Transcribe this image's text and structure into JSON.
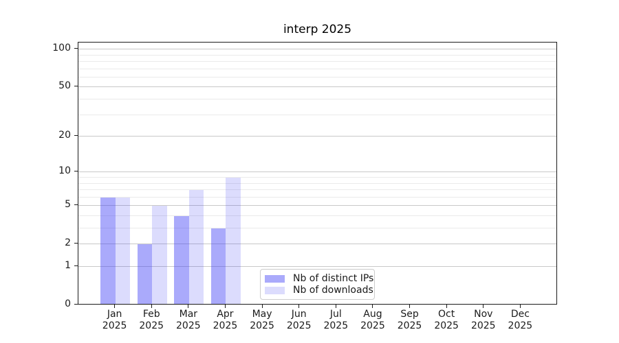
{
  "chart_data": {
    "type": "bar",
    "title": "interp 2025",
    "categories": [
      "Jan",
      "Feb",
      "Mar",
      "Apr",
      "May",
      "Jun",
      "Jul",
      "Aug",
      "Sep",
      "Oct",
      "Nov",
      "Dec"
    ],
    "category_year": "2025",
    "series": [
      {
        "name": "Nb of distinct IPs",
        "color": "rgba(62,62,245,0.44)",
        "values": [
          6,
          2,
          4,
          3,
          0,
          0,
          0,
          0,
          0,
          0,
          0,
          0
        ]
      },
      {
        "name": "Nb of downloads",
        "color": "rgba(62,62,245,0.18)",
        "values": [
          6,
          5,
          7,
          9,
          0,
          0,
          0,
          0,
          0,
          0,
          0,
          0
        ]
      }
    ],
    "xlabel": "",
    "ylabel": "",
    "yaxis": {
      "scale": "log10(1+v)",
      "major_ticks": [
        0,
        1,
        2,
        5,
        10,
        20,
        50,
        100
      ],
      "minor_ticks": [
        3,
        4,
        6,
        7,
        8,
        9,
        30,
        40,
        60,
        70,
        80,
        90
      ],
      "ylim": [
        0,
        114
      ]
    },
    "grid": {
      "major_color": "#c8c8c8",
      "minor_color": "#eaeaea"
    },
    "legend_position": "lower center"
  }
}
